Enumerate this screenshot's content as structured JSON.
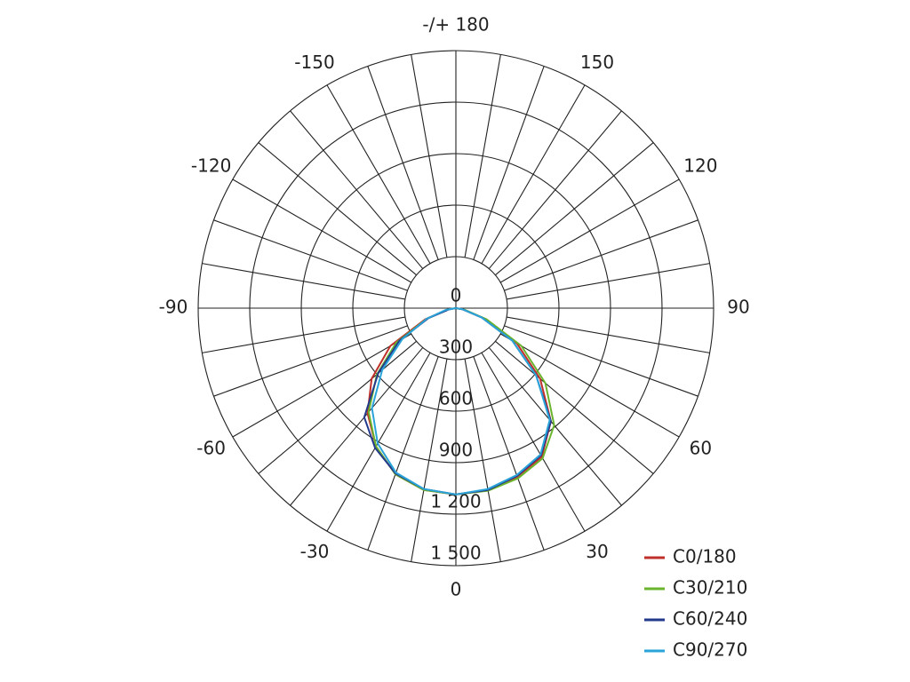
{
  "chart_data": {
    "type": "polar",
    "rlim": [
      0,
      1500
    ],
    "rticks": [
      0,
      300,
      600,
      900,
      {
        "value": 1200,
        "label": "1 200"
      },
      {
        "value": 1500,
        "label": "1 500"
      }
    ],
    "angle_ticks": [
      -150,
      -120,
      -90,
      -60,
      -30,
      0,
      30,
      60,
      90,
      120,
      150,
      {
        "value": 180,
        "label": "-/+ 180"
      }
    ],
    "angles": [
      -170,
      -160,
      -150,
      -140,
      -130,
      -120,
      -110,
      -100,
      -90,
      -80,
      -70,
      -60,
      -50,
      -40,
      -30,
      -20,
      -10,
      0,
      10,
      20,
      30,
      40,
      50,
      60,
      70,
      80,
      90,
      100,
      110,
      120,
      130,
      140,
      150,
      160,
      170,
      180
    ],
    "series": [
      {
        "name": "C0/180",
        "color": "#c0302a",
        "values": [
          0,
          0,
          0,
          0,
          0,
          0,
          0,
          0,
          0,
          50,
          190,
          440,
          640,
          800,
          930,
          1030,
          1075,
          1085,
          1075,
          1045,
          1000,
          860,
          640,
          410,
          170,
          40,
          0,
          0,
          0,
          0,
          0,
          0,
          0,
          0,
          0,
          0
        ]
      },
      {
        "name": "C30/210",
        "color": "#6ab42d",
        "values": [
          0,
          0,
          0,
          0,
          0,
          0,
          0,
          0,
          0,
          50,
          180,
          400,
          600,
          790,
          930,
          1030,
          1075,
          1085,
          1080,
          1055,
          1010,
          890,
          680,
          440,
          190,
          50,
          0,
          0,
          0,
          0,
          0,
          0,
          0,
          0,
          0,
          0
        ]
      },
      {
        "name": "C60/240",
        "color": "#233a8c",
        "values": [
          0,
          0,
          0,
          0,
          0,
          0,
          0,
          0,
          0,
          40,
          170,
          380,
          590,
          830,
          940,
          1025,
          1070,
          1085,
          1075,
          1040,
          990,
          860,
          610,
          380,
          160,
          40,
          0,
          0,
          0,
          0,
          0,
          0,
          0,
          0,
          0,
          0
        ]
      },
      {
        "name": "C90/270",
        "color": "#2aa3d8",
        "values": [
          0,
          0,
          0,
          0,
          0,
          0,
          0,
          0,
          0,
          60,
          180,
          360,
          560,
          760,
          910,
          1020,
          1070,
          1085,
          1070,
          1035,
          985,
          850,
          610,
          380,
          160,
          40,
          0,
          0,
          0,
          0,
          0,
          0,
          0,
          0,
          0,
          0
        ]
      }
    ],
    "grid": true,
    "legend": "bottom-right"
  }
}
